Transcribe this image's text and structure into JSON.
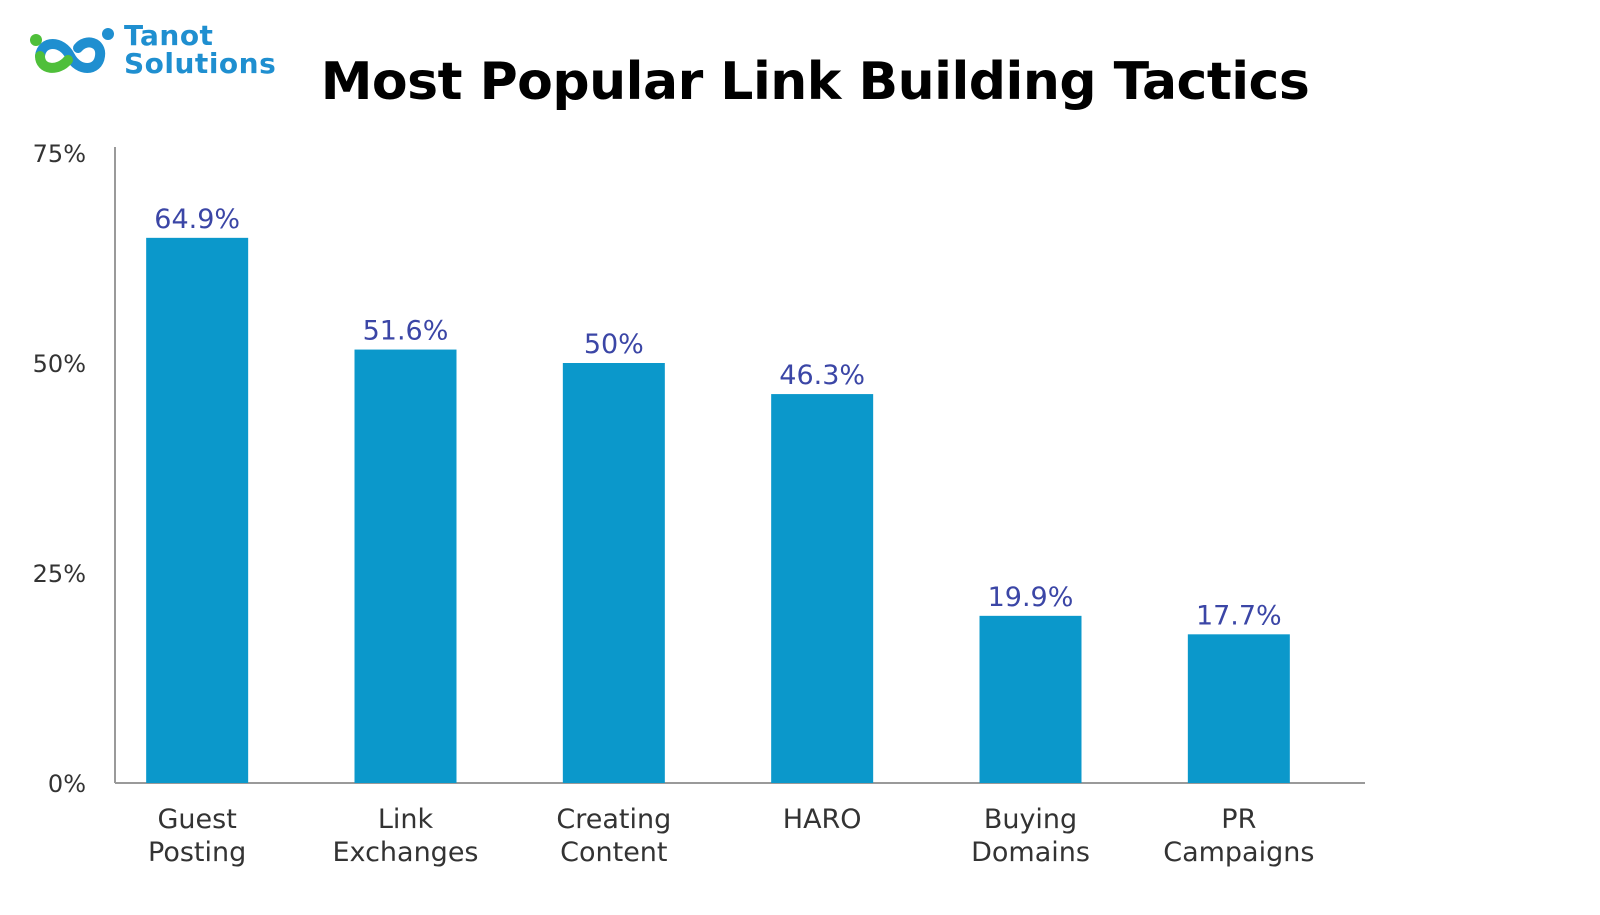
{
  "logo": {
    "line1": "Tanot",
    "line2": "Solutions"
  },
  "colors": {
    "bar": "#0b98cb",
    "value_label": "#3b46a6",
    "axis": "#9a9a9a",
    "tick_text": "#333333",
    "logo_blue": "#1f8fd0",
    "logo_green": "#4fbf3a"
  },
  "chart_data": {
    "type": "bar",
    "title": "Most Popular Link Building Tactics",
    "categories": [
      [
        "Guest",
        "Posting"
      ],
      [
        "Link",
        "Exchanges"
      ],
      [
        "Creating",
        "Content"
      ],
      [
        "HARO"
      ],
      [
        "Buying",
        "Domains"
      ],
      [
        "PR",
        "Campaigns"
      ]
    ],
    "values": [
      64.9,
      51.6,
      50,
      46.3,
      19.9,
      17.7
    ],
    "value_labels": [
      "64.9%",
      "51.6%",
      "50%",
      "46.3%",
      "19.9%",
      "17.7%"
    ],
    "yticks": [
      "0%",
      "25%",
      "50%",
      "75%"
    ],
    "ytick_values": [
      0,
      25,
      50,
      75
    ],
    "ylim": [
      0,
      75
    ],
    "xlabel": "",
    "ylabel": "",
    "grid": false
  }
}
